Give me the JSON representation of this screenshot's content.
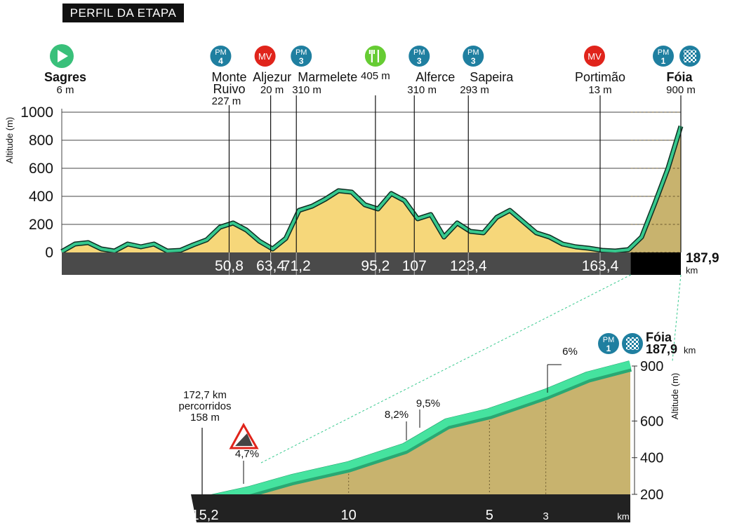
{
  "header": {
    "title": "PERFIL DA ETAPA"
  },
  "colors": {
    "profile_fill": "#f6d77a",
    "profile_line": "#37c98e",
    "line_outline": "#0d2e22",
    "climb_fill": "#c8b36e",
    "grey_bar": "#4a4a4a",
    "pm_badge": "#1f7fa0",
    "mv_badge": "#e0241b",
    "feed_badge": "#66cc33",
    "start_badge": "#39c07a"
  },
  "chart_data": [
    {
      "type": "area",
      "title": "PERFIL DA ETAPA",
      "ylabel": "Altitude (m)",
      "xlabel": "km",
      "xlim": [
        0,
        187.9
      ],
      "ylim": [
        0,
        1000
      ],
      "yticks": [
        "0",
        "200",
        "400",
        "600",
        "800",
        "1000"
      ],
      "grid": true,
      "x": [
        0,
        4,
        8,
        12,
        16,
        20,
        24,
        28,
        32,
        36,
        40,
        44,
        48,
        52,
        56,
        60,
        64,
        68,
        72,
        76,
        80,
        84,
        88,
        92,
        96,
        100,
        104,
        108,
        112,
        116,
        120,
        124,
        128,
        132,
        136,
        140,
        144,
        148,
        152,
        156,
        160,
        164,
        168,
        172,
        176,
        180,
        184,
        187.9
      ],
      "y": [
        6,
        60,
        70,
        25,
        10,
        60,
        40,
        60,
        10,
        15,
        55,
        90,
        180,
        210,
        160,
        80,
        25,
        100,
        300,
        330,
        380,
        440,
        430,
        340,
        310,
        420,
        370,
        240,
        270,
        110,
        210,
        150,
        140,
        250,
        300,
        220,
        140,
        110,
        60,
        40,
        30,
        15,
        10,
        20,
        110,
        350,
        600,
        900
      ],
      "distance_labels": [
        "50,8",
        "63,4",
        "71,2",
        "95,2",
        "107",
        "123,4",
        "163,4"
      ],
      "distance_values": [
        50.8,
        63.4,
        71.2,
        95.2,
        107,
        123.4,
        163.4
      ],
      "finish_label": "187,9",
      "finish_unit": "km",
      "waypoints": [
        {
          "km": 0,
          "name": "Sagres",
          "alt": "6 m",
          "badge": "start",
          "badge_text": "",
          "bold": true
        },
        {
          "km": 50.8,
          "name": "Monte Ruivo",
          "alt": "227 m",
          "badge": "pm",
          "badge_text": "PM",
          "cat": "4",
          "bold": false
        },
        {
          "km": 63.4,
          "name": "Aljezur",
          "alt": "20 m",
          "badge": "mv",
          "badge_text": "MV",
          "bold": false
        },
        {
          "km": 71.2,
          "name": "Marmelete",
          "alt": "310 m",
          "badge": "pm",
          "badge_text": "PM",
          "cat": "3",
          "bold": false
        },
        {
          "km": 95.2,
          "name": "",
          "alt": "405 m",
          "badge": "feed",
          "badge_text": "",
          "bold": false
        },
        {
          "km": 107,
          "name": "Alferce",
          "alt": "310 m",
          "badge": "pm",
          "badge_text": "PM",
          "cat": "3",
          "bold": false
        },
        {
          "km": 123.4,
          "name": "Sapeira",
          "alt": "293 m",
          "badge": "pm",
          "badge_text": "PM",
          "cat": "3",
          "bold": false
        },
        {
          "km": 163.4,
          "name": "Portimão",
          "alt": "13 m",
          "badge": "mv",
          "badge_text": "MV",
          "bold": false
        },
        {
          "km": 187.9,
          "name": "Fóia",
          "alt": "900 m",
          "badge": "pm",
          "badge_text": "PM",
          "cat": "1",
          "bold": true
        }
      ]
    },
    {
      "type": "area",
      "title": "Fóia",
      "ylabel": "Altitude (m)",
      "xlabel": "km",
      "xlim": [
        15.2,
        0
      ],
      "ylim": [
        150,
        950
      ],
      "yticks": [
        "200",
        "400",
        "600",
        "900"
      ],
      "x_ticks": [
        "15,2",
        "10",
        "5",
        "3"
      ],
      "x_tick_values": [
        15.2,
        10,
        5,
        3
      ],
      "x": [
        15.2,
        13.5,
        12,
        10,
        8,
        6.5,
        5,
        3,
        1.5,
        0
      ],
      "y": [
        158,
        215,
        280,
        350,
        450,
        585,
        640,
        745,
        840,
        900
      ],
      "gradients": [
        {
          "km": 14,
          "label": "4,7%"
        },
        {
          "km": 7.1,
          "label": "8,2%"
        },
        {
          "km": 6.6,
          "label": "9,5%"
        },
        {
          "km": 3,
          "label": "6%"
        }
      ],
      "start_note": [
        "172,7 km",
        "percorridos",
        "158 m"
      ],
      "summit_name": "Fóia",
      "summit_km": "187,9",
      "summit_unit": "km",
      "summit_badge": "PM",
      "summit_cat": "1"
    }
  ]
}
